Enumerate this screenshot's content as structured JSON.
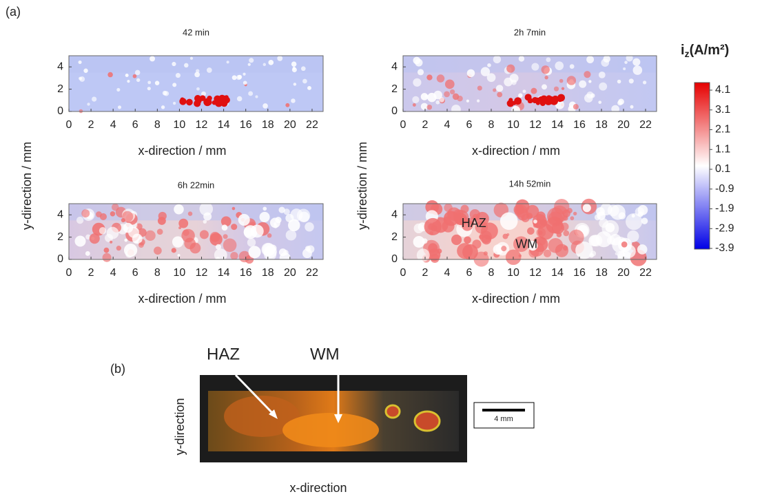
{
  "panel_a_label": "(a)",
  "ylabel": "y-direction / mm",
  "charts": [
    {
      "title": "42 min",
      "xlabel": "x-direction / mm",
      "xlim": [
        0,
        23
      ],
      "ylim": [
        0,
        5
      ],
      "xticks": [
        0,
        2,
        4,
        6,
        8,
        10,
        12,
        14,
        16,
        18,
        20,
        22
      ],
      "yticks": [
        0,
        2,
        4
      ]
    },
    {
      "title": "2h 7min",
      "xlabel": "x-direction / mm",
      "xlim": [
        0,
        23
      ],
      "ylim": [
        0,
        5
      ],
      "xticks": [
        0,
        2,
        4,
        6,
        8,
        10,
        12,
        14,
        16,
        18,
        20,
        22
      ],
      "yticks": [
        0,
        2,
        4
      ]
    },
    {
      "title": "6h 22min",
      "xlabel": "x-direction / mm",
      "xlim": [
        0,
        23
      ],
      "ylim": [
        0,
        5
      ],
      "xticks": [
        0,
        2,
        4,
        6,
        8,
        10,
        12,
        14,
        16,
        18,
        20,
        22
      ],
      "yticks": [
        0,
        2,
        4
      ]
    },
    {
      "title": "14h 52min",
      "xlabel": "x-direction / mm",
      "xlim": [
        0,
        23
      ],
      "ylim": [
        0,
        5
      ],
      "xticks": [
        0,
        2,
        4,
        6,
        8,
        10,
        12,
        14,
        16,
        18,
        20,
        22
      ],
      "yticks": [
        0,
        2,
        4
      ],
      "annotations": [
        "HAZ",
        "WM"
      ]
    }
  ],
  "colorbar": {
    "symbol": "i",
    "subscript": "z",
    "unit": "(A/m²)",
    "ticks": [
      4.1,
      3.1,
      2.1,
      1.1,
      0.1,
      -0.9,
      -1.9,
      -2.9,
      -3.9
    ]
  },
  "panel_b": {
    "label": "(b)",
    "annotations": [
      "HAZ",
      "WM"
    ],
    "xlabel": "x-direction",
    "ylabel": "y-direction",
    "scale_bar": "4 mm"
  }
}
